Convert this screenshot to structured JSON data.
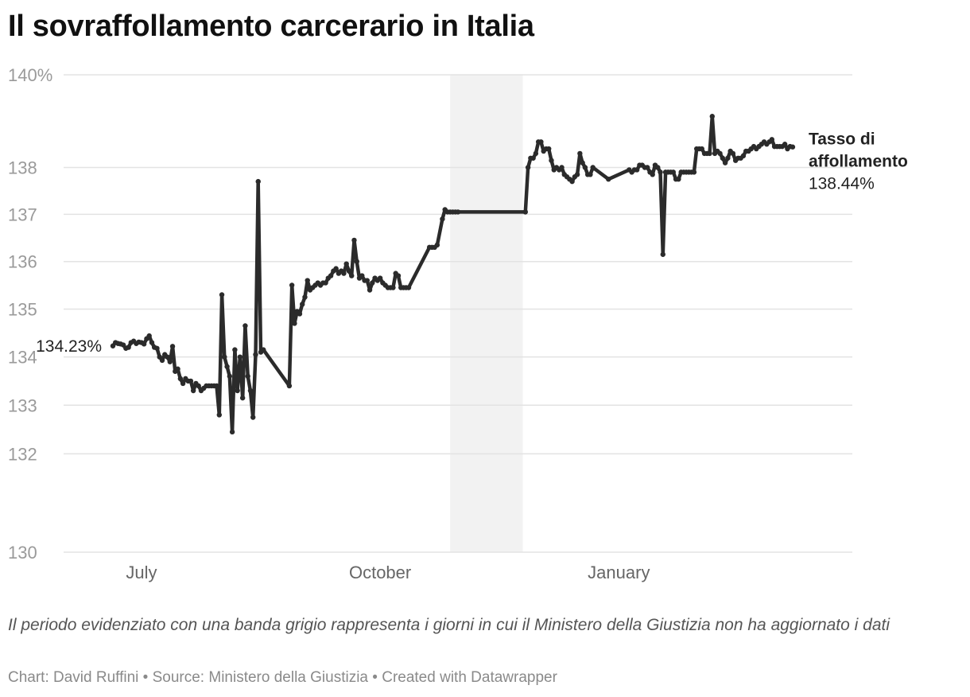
{
  "title": "Il sovraffollamento carcerario in Italia",
  "caption": "Il periodo evidenziato con una banda grigio rappresenta i giorni in cui il Ministero della Giustizia non ha aggiornato i dati",
  "credits": {
    "chart": "Chart: David Ruffini",
    "separator": " • ",
    "source": "Source: Ministero della Giustizia",
    "created": "Created with Datawrapper"
  },
  "colors": {
    "line": "#2b2b2b",
    "grid": "#e3e3e3",
    "band": "#f2f2f2",
    "axis_text": "#9a9a9a"
  },
  "chart_data": {
    "type": "line",
    "y_scale": "log",
    "ylim": [
      130,
      140
    ],
    "y_ticks": [
      {
        "value": 140,
        "label": "140%"
      },
      {
        "value": 138,
        "label": "138"
      },
      {
        "value": 137,
        "label": "137"
      },
      {
        "value": 136,
        "label": "136"
      },
      {
        "value": 135,
        "label": "135"
      },
      {
        "value": 134,
        "label": "134"
      },
      {
        "value": 133,
        "label": "133"
      },
      {
        "value": 132,
        "label": "132"
      },
      {
        "value": 130,
        "label": "130"
      }
    ],
    "x_range": [
      "2023-06-01",
      "2024-03-31"
    ],
    "x_ticks": [
      {
        "date": "2023-07-01",
        "label": "July"
      },
      {
        "date": "2023-10-01",
        "label": "October"
      },
      {
        "date": "2024-01-01",
        "label": "January"
      }
    ],
    "highlight_band": {
      "start": "2023-10-28",
      "end": "2023-11-25"
    },
    "start_label": "134.23%",
    "end_label": {
      "name_line1": "Tasso di",
      "name_line2": "affollamento",
      "value": "138.44%"
    },
    "series": [
      {
        "name": "Tasso di affollamento",
        "points": [
          [
            "2023-06-20",
            134.23
          ],
          [
            "2023-06-21",
            134.3
          ],
          [
            "2023-06-22",
            134.28
          ],
          [
            "2023-06-23",
            134.27
          ],
          [
            "2023-06-24",
            134.25
          ],
          [
            "2023-06-25",
            134.18
          ],
          [
            "2023-06-26",
            134.2
          ],
          [
            "2023-06-27",
            134.3
          ],
          [
            "2023-06-28",
            134.33
          ],
          [
            "2023-06-29",
            134.28
          ],
          [
            "2023-06-30",
            134.31
          ],
          [
            "2023-07-01",
            134.3
          ],
          [
            "2023-07-02",
            134.27
          ],
          [
            "2023-07-03",
            134.38
          ],
          [
            "2023-07-04",
            134.44
          ],
          [
            "2023-07-05",
            134.3
          ],
          [
            "2023-07-06",
            134.2
          ],
          [
            "2023-07-07",
            134.18
          ],
          [
            "2023-07-08",
            134.0
          ],
          [
            "2023-07-09",
            133.93
          ],
          [
            "2023-07-10",
            134.05
          ],
          [
            "2023-07-11",
            134.0
          ],
          [
            "2023-07-12",
            133.9
          ],
          [
            "2023-07-13",
            134.22
          ],
          [
            "2023-07-14",
            133.7
          ],
          [
            "2023-07-15",
            133.75
          ],
          [
            "2023-07-16",
            133.55
          ],
          [
            "2023-07-17",
            133.45
          ],
          [
            "2023-07-18",
            133.55
          ],
          [
            "2023-07-19",
            133.5
          ],
          [
            "2023-07-20",
            133.5
          ],
          [
            "2023-07-21",
            133.3
          ],
          [
            "2023-07-22",
            133.45
          ],
          [
            "2023-07-23",
            133.4
          ],
          [
            "2023-07-24",
            133.3
          ],
          [
            "2023-07-25",
            133.35
          ],
          [
            "2023-07-26",
            133.4
          ],
          [
            "2023-07-27",
            133.4
          ],
          [
            "2023-07-28",
            133.4
          ],
          [
            "2023-07-29",
            133.4
          ],
          [
            "2023-07-30",
            133.4
          ],
          [
            "2023-07-31",
            132.8
          ],
          [
            "2023-08-01",
            135.3
          ],
          [
            "2023-08-02",
            134.0
          ],
          [
            "2023-08-03",
            133.8
          ],
          [
            "2023-08-04",
            133.6
          ],
          [
            "2023-08-05",
            132.45
          ],
          [
            "2023-08-06",
            134.15
          ],
          [
            "2023-08-07",
            133.3
          ],
          [
            "2023-08-08",
            134.0
          ],
          [
            "2023-08-09",
            133.15
          ],
          [
            "2023-08-10",
            134.65
          ],
          [
            "2023-08-11",
            133.6
          ],
          [
            "2023-08-12",
            133.3
          ],
          [
            "2023-08-13",
            132.75
          ],
          [
            "2023-08-14",
            134.05
          ],
          [
            "2023-08-15",
            137.7
          ],
          [
            "2023-08-16",
            134.1
          ],
          [
            "2023-08-17",
            134.15
          ],
          [
            "2023-08-27",
            133.4
          ],
          [
            "2023-08-28",
            135.5
          ],
          [
            "2023-08-29",
            134.7
          ],
          [
            "2023-08-30",
            134.95
          ],
          [
            "2023-08-31",
            134.9
          ],
          [
            "2023-09-01",
            135.1
          ],
          [
            "2023-09-02",
            135.25
          ],
          [
            "2023-09-03",
            135.6
          ],
          [
            "2023-09-04",
            135.4
          ],
          [
            "2023-09-05",
            135.45
          ],
          [
            "2023-09-06",
            135.5
          ],
          [
            "2023-09-07",
            135.55
          ],
          [
            "2023-09-08",
            135.5
          ],
          [
            "2023-09-09",
            135.55
          ],
          [
            "2023-09-10",
            135.55
          ],
          [
            "2023-09-11",
            135.65
          ],
          [
            "2023-09-12",
            135.7
          ],
          [
            "2023-09-13",
            135.8
          ],
          [
            "2023-09-14",
            135.85
          ],
          [
            "2023-09-15",
            135.75
          ],
          [
            "2023-09-16",
            135.8
          ],
          [
            "2023-09-17",
            135.75
          ],
          [
            "2023-09-18",
            135.95
          ],
          [
            "2023-09-19",
            135.8
          ],
          [
            "2023-09-20",
            135.7
          ],
          [
            "2023-09-21",
            136.45
          ],
          [
            "2023-09-22",
            136.0
          ],
          [
            "2023-09-23",
            135.65
          ],
          [
            "2023-09-24",
            135.7
          ],
          [
            "2023-09-25",
            135.6
          ],
          [
            "2023-09-26",
            135.6
          ],
          [
            "2023-09-27",
            135.4
          ],
          [
            "2023-09-28",
            135.55
          ],
          [
            "2023-09-29",
            135.65
          ],
          [
            "2023-09-30",
            135.6
          ],
          [
            "2023-10-01",
            135.65
          ],
          [
            "2023-10-02",
            135.55
          ],
          [
            "2023-10-03",
            135.5
          ],
          [
            "2023-10-04",
            135.45
          ],
          [
            "2023-10-05",
            135.45
          ],
          [
            "2023-10-06",
            135.45
          ],
          [
            "2023-10-07",
            135.75
          ],
          [
            "2023-10-08",
            135.7
          ],
          [
            "2023-10-09",
            135.45
          ],
          [
            "2023-10-10",
            135.45
          ],
          [
            "2023-10-11",
            135.45
          ],
          [
            "2023-10-12",
            135.45
          ],
          [
            "2023-10-20",
            136.3
          ],
          [
            "2023-10-21",
            136.3
          ],
          [
            "2023-10-22",
            136.3
          ],
          [
            "2023-10-23",
            136.35
          ],
          [
            "2023-10-25",
            136.9
          ],
          [
            "2023-10-26",
            137.1
          ],
          [
            "2023-10-27",
            137.05
          ],
          [
            "2023-10-28",
            137.05
          ],
          [
            "2023-10-29",
            137.05
          ],
          [
            "2023-10-30",
            137.05
          ],
          [
            "2023-10-31",
            137.05
          ],
          [
            "2023-11-26",
            137.05
          ],
          [
            "2023-11-27",
            138.0
          ],
          [
            "2023-11-28",
            138.2
          ],
          [
            "2023-11-29",
            138.2
          ],
          [
            "2023-11-30",
            138.3
          ],
          [
            "2023-12-01",
            138.55
          ],
          [
            "2023-12-02",
            138.55
          ],
          [
            "2023-12-03",
            138.35
          ],
          [
            "2023-12-04",
            138.4
          ],
          [
            "2023-12-05",
            138.4
          ],
          [
            "2023-12-06",
            138.15
          ],
          [
            "2023-12-07",
            137.95
          ],
          [
            "2023-12-08",
            138.0
          ],
          [
            "2023-12-09",
            137.95
          ],
          [
            "2023-12-10",
            138.0
          ],
          [
            "2023-12-11",
            137.85
          ],
          [
            "2023-12-12",
            137.8
          ],
          [
            "2023-12-13",
            137.75
          ],
          [
            "2023-12-14",
            137.7
          ],
          [
            "2023-12-15",
            137.8
          ],
          [
            "2023-12-16",
            137.85
          ],
          [
            "2023-12-17",
            138.3
          ],
          [
            "2023-12-18",
            138.1
          ],
          [
            "2023-12-19",
            138.0
          ],
          [
            "2023-12-20",
            137.85
          ],
          [
            "2023-12-21",
            137.85
          ],
          [
            "2023-12-22",
            138.0
          ],
          [
            "2023-12-28",
            137.75
          ],
          [
            "2024-01-05",
            137.95
          ],
          [
            "2024-01-06",
            137.9
          ],
          [
            "2024-01-07",
            137.95
          ],
          [
            "2024-01-08",
            137.95
          ],
          [
            "2024-01-09",
            138.05
          ],
          [
            "2024-01-10",
            138.05
          ],
          [
            "2024-01-11",
            138.0
          ],
          [
            "2024-01-12",
            138.0
          ],
          [
            "2024-01-13",
            137.9
          ],
          [
            "2024-01-14",
            137.85
          ],
          [
            "2024-01-15",
            138.05
          ],
          [
            "2024-01-16",
            138.0
          ],
          [
            "2024-01-17",
            137.9
          ],
          [
            "2024-01-18",
            136.15
          ],
          [
            "2024-01-19",
            137.9
          ],
          [
            "2024-01-20",
            137.9
          ],
          [
            "2024-01-21",
            137.9
          ],
          [
            "2024-01-22",
            137.9
          ],
          [
            "2024-01-23",
            137.75
          ],
          [
            "2024-01-24",
            137.75
          ],
          [
            "2024-01-25",
            137.9
          ],
          [
            "2024-01-26",
            137.9
          ],
          [
            "2024-01-27",
            137.9
          ],
          [
            "2024-01-28",
            137.9
          ],
          [
            "2024-01-29",
            137.9
          ],
          [
            "2024-01-30",
            137.9
          ],
          [
            "2024-01-31",
            138.4
          ],
          [
            "2024-02-01",
            138.4
          ],
          [
            "2024-02-02",
            138.4
          ],
          [
            "2024-02-03",
            138.3
          ],
          [
            "2024-02-04",
            138.3
          ],
          [
            "2024-02-05",
            138.3
          ],
          [
            "2024-02-06",
            139.1
          ],
          [
            "2024-02-07",
            138.3
          ],
          [
            "2024-02-08",
            138.35
          ],
          [
            "2024-02-09",
            138.3
          ],
          [
            "2024-02-10",
            138.2
          ],
          [
            "2024-02-11",
            138.1
          ],
          [
            "2024-02-12",
            138.2
          ],
          [
            "2024-02-13",
            138.35
          ],
          [
            "2024-02-14",
            138.3
          ],
          [
            "2024-02-15",
            138.15
          ],
          [
            "2024-02-16",
            138.2
          ],
          [
            "2024-02-17",
            138.2
          ],
          [
            "2024-02-18",
            138.25
          ],
          [
            "2024-02-19",
            138.35
          ],
          [
            "2024-02-20",
            138.35
          ],
          [
            "2024-02-21",
            138.4
          ],
          [
            "2024-02-22",
            138.45
          ],
          [
            "2024-02-23",
            138.4
          ],
          [
            "2024-02-24",
            138.45
          ],
          [
            "2024-02-25",
            138.5
          ],
          [
            "2024-02-26",
            138.55
          ],
          [
            "2024-02-27",
            138.5
          ],
          [
            "2024-02-28",
            138.55
          ],
          [
            "2024-02-29",
            138.6
          ],
          [
            "2024-03-01",
            138.45
          ],
          [
            "2024-03-02",
            138.45
          ],
          [
            "2024-03-03",
            138.45
          ],
          [
            "2024-03-04",
            138.45
          ],
          [
            "2024-03-05",
            138.5
          ],
          [
            "2024-03-06",
            138.4
          ],
          [
            "2024-03-07",
            138.45
          ],
          [
            "2024-03-08",
            138.44
          ]
        ]
      }
    ]
  }
}
